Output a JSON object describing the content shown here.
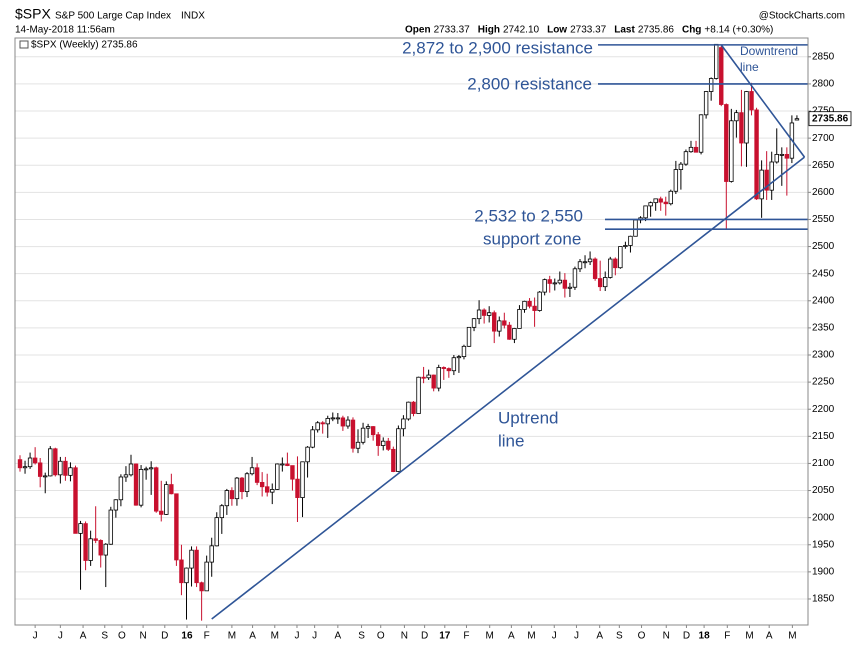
{
  "chart_data": {
    "type": "candlestick",
    "title": "$SPX",
    "subtitle": "S&P 500 Large Cap Index",
    "exchange": "INDX",
    "date": "14-May-2018 11:56am",
    "source": "@StockCharts.com",
    "quote": [
      {
        "label": "Open",
        "value": "2733.37"
      },
      {
        "label": "High",
        "value": "2742.10"
      },
      {
        "label": "Low",
        "value": "2733.37"
      },
      {
        "label": "Last",
        "value": "2735.86"
      },
      {
        "label": "Chg",
        "value": "+8.14 (+0.30%)"
      }
    ],
    "legend": "$SPX (Weekly) 2735.86",
    "last": 2735.86,
    "up_color": "#ffffff",
    "down_color": "#c8102e",
    "annotation_color": "#2f5597",
    "annotations": {
      "resistance_high": "2,872 to 2,900 resistance",
      "resistance": "2,800 resistance",
      "support": [
        "2,532 to 2,550",
        "support zone"
      ],
      "uptrend": [
        "Uptrend",
        "line"
      ],
      "downtrend": [
        "Downtrend",
        "line"
      ]
    },
    "levels": [
      2872,
      2800,
      2550,
      2532
    ],
    "trendlines": [
      {
        "x": [
          38,
          155.5
        ],
        "y": [
          1813,
          2665
        ]
      },
      {
        "x": [
          139,
          155.5
        ],
        "y": [
          2872,
          2665
        ]
      }
    ],
    "ylim": [
      1802,
      2881
    ],
    "yticks": [
      1850,
      1900,
      1950,
      2000,
      2050,
      2100,
      2150,
      2200,
      2250,
      2300,
      2350,
      2400,
      2450,
      2500,
      2550,
      2600,
      2650,
      2700,
      2750,
      2800,
      2850
    ],
    "xlim": [
      -1,
      156
    ],
    "xticks": [
      {
        "value": 3,
        "label": "J"
      },
      {
        "value": 8,
        "label": "J"
      },
      {
        "value": 12.5,
        "label": "A"
      },
      {
        "value": 16.8,
        "label": "S"
      },
      {
        "value": 20.2,
        "label": "O"
      },
      {
        "value": 24.4,
        "label": "N"
      },
      {
        "value": 28.7,
        "label": "D"
      },
      {
        "value": 33.1,
        "label": "16"
      },
      {
        "value": 37,
        "label": "F"
      },
      {
        "value": 42,
        "label": "M"
      },
      {
        "value": 46.1,
        "label": "A"
      },
      {
        "value": 50.5,
        "label": "M"
      },
      {
        "value": 54.9,
        "label": "J"
      },
      {
        "value": 58.4,
        "label": "J"
      },
      {
        "value": 63,
        "label": "A"
      },
      {
        "value": 67.7,
        "label": "S"
      },
      {
        "value": 71.5,
        "label": "O"
      },
      {
        "value": 76.2,
        "label": "N"
      },
      {
        "value": 80.2,
        "label": "D"
      },
      {
        "value": 84.2,
        "label": "17"
      },
      {
        "value": 88.5,
        "label": "F"
      },
      {
        "value": 93.1,
        "label": "M"
      },
      {
        "value": 97.4,
        "label": "A"
      },
      {
        "value": 101.4,
        "label": "M"
      },
      {
        "value": 105.9,
        "label": "J"
      },
      {
        "value": 110.3,
        "label": "J"
      },
      {
        "value": 114.9,
        "label": "A"
      },
      {
        "value": 118.8,
        "label": "S"
      },
      {
        "value": 123.2,
        "label": "O"
      },
      {
        "value": 128.1,
        "label": "N"
      },
      {
        "value": 132.1,
        "label": "D"
      },
      {
        "value": 135.6,
        "label": "18"
      },
      {
        "value": 140.2,
        "label": "F"
      },
      {
        "value": 144.6,
        "label": "M"
      },
      {
        "value": 148.5,
        "label": "A"
      },
      {
        "value": 153.1,
        "label": "M"
      }
    ],
    "open": [
      2107,
      2092,
      2094,
      2110,
      2101,
      2076,
      2077,
      2127,
      2079,
      2104,
      2078,
      2092,
      1971,
      1989,
      1921,
      1961,
      1958,
      1931,
      1951,
      2014,
      2033,
      2075,
      2079,
      2099,
      2023,
      2089,
      2090,
      2092,
      2012,
      2006,
      2061,
      2044,
      1922,
      1880,
      1907,
      1940,
      1880,
      1865,
      1918,
      1948,
      2000,
      2022,
      2050,
      2035,
      2073,
      2048,
      2081,
      2092,
      2065,
      2057,
      2047,
      2052,
      2099,
      2099,
      2096,
      2071,
      2037,
      2103,
      2130,
      2162,
      2175,
      2173,
      2183,
      2184,
      2184,
      2169,
      2180,
      2128,
      2139,
      2165,
      2168,
      2153,
      2133,
      2141,
      2126,
      2085,
      2164,
      2182,
      2213,
      2192,
      2259,
      2258,
      2263,
      2239,
      2277,
      2275,
      2271,
      2295,
      2297,
      2316,
      2351,
      2367,
      2383,
      2373,
      2378,
      2344,
      2363,
      2355,
      2329,
      2349,
      2384,
      2399,
      2390,
      2382,
      2416,
      2439,
      2432,
      2433,
      2438,
      2423,
      2425,
      2459,
      2472,
      2472,
      2477,
      2441,
      2426,
      2443,
      2477,
      2461,
      2500,
      2502,
      2519,
      2549,
      2553,
      2575,
      2581,
      2588,
      2582,
      2579,
      2602,
      2642,
      2652,
      2675,
      2683,
      2674,
      2743,
      2786,
      2810,
      2867,
      2762,
      2620,
      2732,
      2747,
      2691,
      2786,
      2752,
      2588,
      2641,
      2604,
      2656,
      2670,
      2670,
      2663,
      2733.37
    ],
    "high": [
      2115,
      2105,
      2120,
      2130,
      2110,
      2083,
      2132,
      2129,
      2112,
      2112,
      2102,
      2096,
      1994,
      1993,
      1976,
      2021,
      1960,
      1953,
      2020,
      2034,
      2080,
      2095,
      2116,
      2100,
      2097,
      2094,
      2104,
      2094,
      2068,
      2067,
      2081,
      2044,
      1950,
      1908,
      1947,
      1947,
      1882,
      1930,
      1963,
      2010,
      2025,
      2053,
      2056,
      2075,
      2075,
      2084,
      2112,
      2100,
      2084,
      2081,
      2063,
      2100,
      2111,
      2120,
      2096,
      2113,
      2103,
      2132,
      2169,
      2178,
      2178,
      2188,
      2194,
      2193,
      2188,
      2187,
      2185,
      2163,
      2175,
      2173,
      2169,
      2158,
      2148,
      2147,
      2131,
      2170,
      2189,
      2214,
      2215,
      2260,
      2278,
      2273,
      2264,
      2282,
      2279,
      2277,
      2300,
      2300,
      2319,
      2351,
      2368,
      2401,
      2386,
      2390,
      2382,
      2371,
      2378,
      2361,
      2350,
      2392,
      2400,
      2405,
      2406,
      2418,
      2441,
      2446,
      2441,
      2454,
      2451,
      2433,
      2463,
      2477,
      2484,
      2491,
      2480,
      2474,
      2454,
      2481,
      2480,
      2500,
      2509,
      2520,
      2549,
      2556,
      2575,
      2583,
      2588,
      2592,
      2592,
      2605,
      2658,
      2656,
      2679,
      2695,
      2695,
      2744,
      2787,
      2812,
      2873,
      2870,
      2764,
      2754,
      2752,
      2789,
      2787,
      2802,
      2756,
      2659,
      2676,
      2675,
      2718,
      2683,
      2683,
      2742,
      2742.1
    ],
    "low": [
      2085,
      2081,
      2090,
      2098,
      2056,
      2045,
      2076,
      2076,
      2063,
      2068,
      2067,
      1971,
      1867,
      1903,
      1911,
      1953,
      1908,
      1872,
      1950,
      2000,
      2021,
      2066,
      2076,
      2022,
      2019,
      2070,
      2042,
      2009,
      1993,
      2005,
      2043,
      1911,
      1857,
      1812,
      1873,
      1872,
      1810,
      1865,
      1891,
      1947,
      1970,
      2005,
      2022,
      2022,
      2034,
      2038,
      2078,
      2060,
      2039,
      2039,
      2025,
      2051,
      2085,
      2095,
      2050,
      1992,
      2001,
      2074,
      2128,
      2157,
      2155,
      2147,
      2178,
      2173,
      2160,
      2164,
      2120,
      2119,
      2135,
      2147,
      2142,
      2114,
      2124,
      2123,
      2084,
      2084,
      2150,
      2179,
      2187,
      2192,
      2248,
      2254,
      2233,
      2233,
      2254,
      2258,
      2263,
      2267,
      2292,
      2315,
      2344,
      2357,
      2358,
      2360,
      2322,
      2334,
      2349,
      2328,
      2322,
      2349,
      2378,
      2386,
      2352,
      2380,
      2410,
      2415,
      2419,
      2430,
      2406,
      2407,
      2420,
      2453,
      2460,
      2466,
      2437,
      2418,
      2418,
      2441,
      2447,
      2459,
      2496,
      2489,
      2519,
      2543,
      2547,
      2555,
      2566,
      2566,
      2557,
      2576,
      2597,
      2605,
      2649,
      2673,
      2674,
      2670,
      2736,
      2769,
      2808,
      2759,
      2533,
      2618,
      2701,
      2648,
      2647,
      2742,
      2586,
      2553,
      2586,
      2586,
      2653,
      2612,
      2594,
      2654,
      2733.37
    ],
    "close": [
      2092,
      2094,
      2110,
      2101,
      2076,
      2077,
      2127,
      2079,
      2104,
      2078,
      2092,
      1971,
      1989,
      1921,
      1961,
      1958,
      1931,
      1951,
      2014,
      2033,
      2075,
      2079,
      2099,
      2023,
      2089,
      2090,
      2092,
      2012,
      2006,
      2061,
      2044,
      1922,
      1880,
      1907,
      1940,
      1880,
      1865,
      1918,
      1948,
      2000,
      2022,
      2050,
      2035,
      2073,
      2048,
      2081,
      2092,
      2065,
      2057,
      2047,
      2052,
      2099,
      2099,
      2096,
      2071,
      2037,
      2103,
      2130,
      2162,
      2175,
      2173,
      2183,
      2184,
      2184,
      2169,
      2180,
      2128,
      2139,
      2165,
      2168,
      2153,
      2133,
      2141,
      2126,
      2085,
      2164,
      2182,
      2213,
      2192,
      2259,
      2258,
      2263,
      2239,
      2277,
      2275,
      2271,
      2295,
      2297,
      2316,
      2351,
      2367,
      2383,
      2373,
      2378,
      2344,
      2363,
      2355,
      2329,
      2349,
      2384,
      2399,
      2390,
      2382,
      2416,
      2439,
      2432,
      2433,
      2438,
      2423,
      2425,
      2459,
      2472,
      2472,
      2477,
      2441,
      2426,
      2443,
      2477,
      2461,
      2500,
      2502,
      2519,
      2549,
      2553,
      2575,
      2581,
      2588,
      2582,
      2579,
      2602,
      2642,
      2652,
      2675,
      2683,
      2674,
      2743,
      2786,
      2810,
      2873,
      2762,
      2620,
      2732,
      2747,
      2691,
      2786,
      2752,
      2588,
      2641,
      2604,
      2656,
      2670,
      2670,
      2663,
      2728,
      2735.86
    ]
  }
}
